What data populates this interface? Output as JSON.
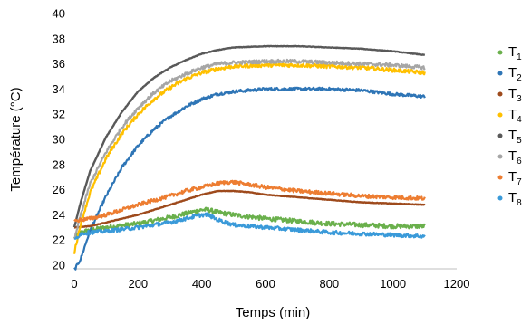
{
  "chart_data": {
    "type": "line",
    "title": "",
    "xlabel": "Temps (min)",
    "ylabel": "Température (°C)",
    "xlim": [
      0,
      1200
    ],
    "ylim": [
      20,
      40
    ],
    "xticks": [
      0,
      200,
      400,
      600,
      800,
      1000,
      1200
    ],
    "yticks": [
      20,
      22,
      24,
      26,
      28,
      30,
      32,
      34,
      36,
      38,
      40
    ],
    "grid": false,
    "legend_position": "right",
    "series": [
      {
        "name": "T1",
        "label_main": "T",
        "label_sub": "1",
        "color": "#6ab04c",
        "noise": 0.18,
        "x": [
          0,
          20,
          50,
          100,
          200,
          300,
          350,
          400,
          420,
          450,
          500,
          600,
          700,
          800,
          900,
          1000,
          1100
        ],
        "y": [
          22.2,
          22.6,
          22.8,
          23.0,
          23.3,
          23.8,
          24.1,
          24.4,
          24.4,
          24.2,
          24.0,
          23.7,
          23.5,
          23.3,
          23.2,
          23.1,
          23.1
        ]
      },
      {
        "name": "T2",
        "label_main": "T",
        "label_sub": "2",
        "color": "#2e75b6",
        "noise": 0.12,
        "x": [
          0,
          20,
          50,
          100,
          150,
          200,
          250,
          300,
          350,
          400,
          450,
          500,
          600,
          700,
          800,
          900,
          1000,
          1100
        ],
        "y": [
          19.6,
          20.5,
          22.8,
          25.5,
          27.8,
          29.5,
          30.8,
          31.8,
          32.6,
          33.2,
          33.6,
          33.8,
          34.0,
          34.0,
          34.0,
          33.9,
          33.6,
          33.4
        ]
      },
      {
        "name": "T3",
        "label_main": "T",
        "label_sub": "3",
        "color": "#9e4a1c",
        "noise": 0.02,
        "x": [
          0,
          50,
          100,
          200,
          300,
          400,
          450,
          500,
          550,
          600,
          700,
          800,
          900,
          1000,
          1100
        ],
        "y": [
          23.0,
          23.1,
          23.4,
          24.0,
          24.8,
          25.6,
          25.9,
          25.9,
          25.8,
          25.6,
          25.4,
          25.2,
          25.0,
          24.9,
          24.8
        ]
      },
      {
        "name": "T4",
        "label_main": "T",
        "label_sub": "4",
        "color": "#ffc000",
        "noise": 0.15,
        "x": [
          0,
          20,
          50,
          100,
          150,
          200,
          250,
          300,
          350,
          400,
          450,
          500,
          600,
          700,
          800,
          900,
          1000,
          1100
        ],
        "y": [
          21.0,
          23.3,
          25.8,
          28.5,
          30.5,
          32.0,
          33.2,
          34.1,
          34.8,
          35.3,
          35.6,
          35.8,
          35.9,
          35.9,
          35.8,
          35.7,
          35.5,
          35.3
        ]
      },
      {
        "name": "T5",
        "label_main": "T",
        "label_sub": "5",
        "color": "#595959",
        "noise": 0.02,
        "x": [
          0,
          20,
          50,
          100,
          150,
          200,
          250,
          300,
          350,
          400,
          450,
          500,
          600,
          700,
          800,
          900,
          1000,
          1100
        ],
        "y": [
          23.0,
          25.0,
          27.5,
          30.2,
          32.2,
          33.8,
          34.9,
          35.7,
          36.3,
          36.8,
          37.1,
          37.3,
          37.4,
          37.4,
          37.3,
          37.2,
          37.0,
          36.7
        ]
      },
      {
        "name": "T6",
        "label_main": "T",
        "label_sub": "6",
        "color": "#a6a6a6",
        "noise": 0.14,
        "x": [
          0,
          20,
          50,
          100,
          150,
          200,
          250,
          300,
          350,
          400,
          450,
          500,
          600,
          700,
          800,
          900,
          1000,
          1100
        ],
        "y": [
          22.0,
          24.0,
          26.5,
          29.0,
          31.0,
          32.5,
          33.7,
          34.6,
          35.2,
          35.7,
          36.0,
          36.1,
          36.2,
          36.2,
          36.1,
          36.0,
          35.9,
          35.7
        ]
      },
      {
        "name": "T7",
        "label_main": "T",
        "label_sub": "7",
        "color": "#ed7d31",
        "noise": 0.15,
        "x": [
          0,
          20,
          50,
          100,
          200,
          300,
          350,
          400,
          450,
          480,
          500,
          550,
          600,
          700,
          800,
          900,
          1000,
          1100
        ],
        "y": [
          23.5,
          23.6,
          23.7,
          24.0,
          24.8,
          25.5,
          25.9,
          26.2,
          26.5,
          26.6,
          26.6,
          26.4,
          26.2,
          25.9,
          25.7,
          25.5,
          25.4,
          25.3
        ]
      },
      {
        "name": "T8",
        "label_main": "T",
        "label_sub": "8",
        "color": "#3a9ad9",
        "noise": 0.15,
        "x": [
          0,
          20,
          50,
          100,
          200,
          300,
          350,
          400,
          420,
          450,
          500,
          600,
          700,
          800,
          900,
          1000,
          1100
        ],
        "y": [
          22.0,
          22.5,
          22.6,
          22.7,
          23.0,
          23.4,
          23.7,
          24.0,
          24.0,
          23.6,
          23.2,
          23.0,
          22.8,
          22.6,
          22.5,
          22.4,
          22.3
        ]
      }
    ]
  }
}
